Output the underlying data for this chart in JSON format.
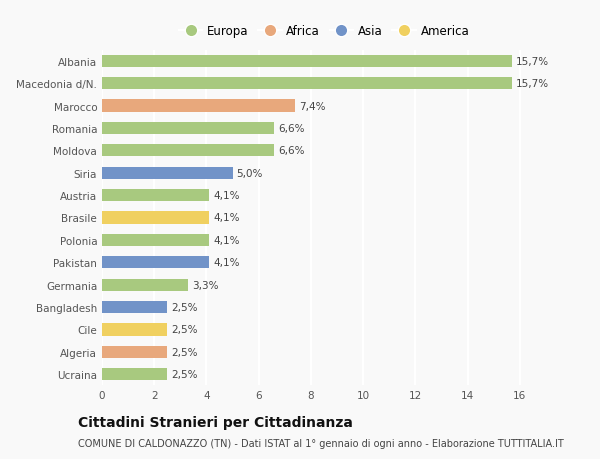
{
  "categories": [
    "Albania",
    "Macedonia d/N.",
    "Marocco",
    "Romania",
    "Moldova",
    "Siria",
    "Austria",
    "Brasile",
    "Polonia",
    "Pakistan",
    "Germania",
    "Bangladesh",
    "Cile",
    "Algeria",
    "Ucraina"
  ],
  "values": [
    15.7,
    15.7,
    7.4,
    6.6,
    6.6,
    5.0,
    4.1,
    4.1,
    4.1,
    4.1,
    3.3,
    2.5,
    2.5,
    2.5,
    2.5
  ],
  "labels": [
    "15,7%",
    "15,7%",
    "7,4%",
    "6,6%",
    "6,6%",
    "5,0%",
    "4,1%",
    "4,1%",
    "4,1%",
    "4,1%",
    "3,3%",
    "2,5%",
    "2,5%",
    "2,5%",
    "2,5%"
  ],
  "continents": [
    "Europa",
    "Europa",
    "Africa",
    "Europa",
    "Europa",
    "Asia",
    "Europa",
    "America",
    "Europa",
    "Asia",
    "Europa",
    "Asia",
    "America",
    "Africa",
    "Europa"
  ],
  "colors": {
    "Europa": "#a8c97f",
    "Africa": "#e8a87c",
    "Asia": "#7193c8",
    "America": "#f0d060"
  },
  "legend_order": [
    "Europa",
    "Africa",
    "Asia",
    "America"
  ],
  "title": "Cittadini Stranieri per Cittadinanza",
  "subtitle": "COMUNE DI CALDONAZZO (TN) - Dati ISTAT al 1° gennaio di ogni anno - Elaborazione TUTTITALIA.IT",
  "xlim": [
    0,
    17
  ],
  "xticks": [
    0,
    2,
    4,
    6,
    8,
    10,
    12,
    14,
    16
  ],
  "background_color": "#f9f9f9",
  "plot_background": "#f9f9f9",
  "grid_color": "#ffffff",
  "bar_height": 0.55,
  "label_fontsize": 7.5,
  "tick_fontsize": 7.5,
  "title_fontsize": 10,
  "subtitle_fontsize": 7
}
